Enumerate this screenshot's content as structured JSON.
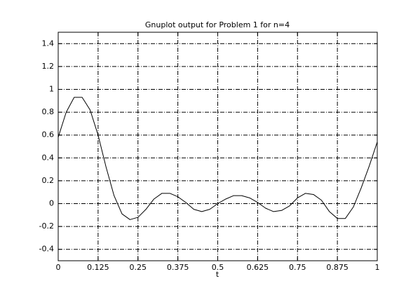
{
  "chart_data": {
    "type": "line",
    "title": "Gnuplot output for Problem 1 for n=4",
    "x_label": "t",
    "x": [
      0,
      0.025,
      0.05,
      0.075,
      0.1,
      0.125,
      0.15,
      0.175,
      0.2,
      0.225,
      0.25,
      0.275,
      0.3,
      0.325,
      0.35,
      0.375,
      0.4,
      0.425,
      0.45,
      0.475,
      0.5,
      0.525,
      0.55,
      0.575,
      0.6,
      0.625,
      0.65,
      0.675,
      0.7,
      0.725,
      0.75,
      0.775,
      0.8,
      0.825,
      0.85,
      0.875,
      0.9,
      0.925,
      0.95,
      0.975,
      1
    ],
    "values": [
      0.58,
      0.8,
      0.93,
      0.93,
      0.82,
      0.6,
      0.32,
      0.07,
      -0.09,
      -0.14,
      -0.12,
      -0.05,
      0.04,
      0.09,
      0.09,
      0.06,
      0.01,
      -0.05,
      -0.07,
      -0.05,
      0.0,
      0.04,
      0.07,
      0.07,
      0.05,
      0.01,
      -0.04,
      -0.07,
      -0.06,
      -0.02,
      0.05,
      0.09,
      0.08,
      0.03,
      -0.07,
      -0.13,
      -0.13,
      -0.03,
      0.14,
      0.33,
      0.54
    ],
    "color": "#000000",
    "xlim": [
      0,
      1
    ],
    "xticks": [
      0,
      0.125,
      0.25,
      0.375,
      0.5,
      0.625,
      0.75,
      0.875,
      1
    ],
    "ylim": [
      -0.5,
      1.5
    ],
    "yticks": [
      -0.4,
      -0.2,
      0,
      0.2,
      0.4,
      0.6,
      0.8,
      1,
      1.2,
      1.4
    ],
    "grid": true
  }
}
